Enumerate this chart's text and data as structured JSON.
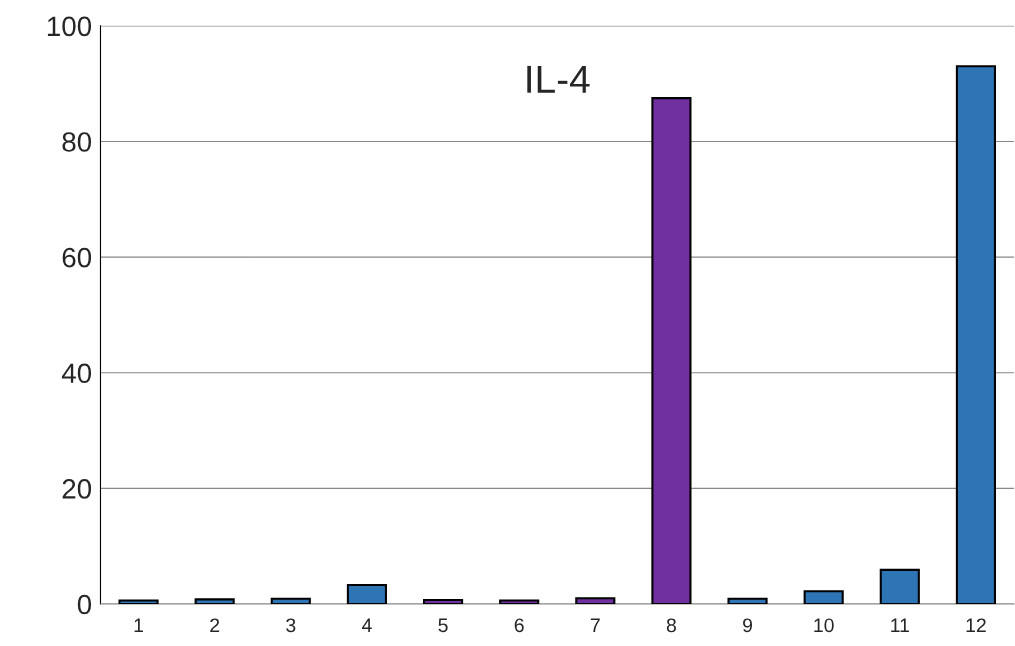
{
  "chart_data": {
    "type": "bar",
    "title": "IL-4",
    "categories": [
      "1",
      "2",
      "3",
      "4",
      "5",
      "6",
      "7",
      "8",
      "9",
      "10",
      "11",
      "12"
    ],
    "values": [
      0.6,
      0.8,
      0.9,
      3.3,
      0.7,
      0.6,
      1.0,
      87.5,
      0.9,
      2.2,
      5.9,
      93
    ],
    "colors": [
      "#2e75b6",
      "#2e75b6",
      "#2e75b6",
      "#2e75b6",
      "#7030a0",
      "#7030a0",
      "#7030a0",
      "#7030a0",
      "#2e75b6",
      "#2e75b6",
      "#2e75b6",
      "#2e75b6"
    ],
    "ylim": [
      0,
      100
    ],
    "yticks": [
      0,
      20,
      40,
      60,
      80,
      100
    ],
    "grid": "y",
    "legend": false
  }
}
